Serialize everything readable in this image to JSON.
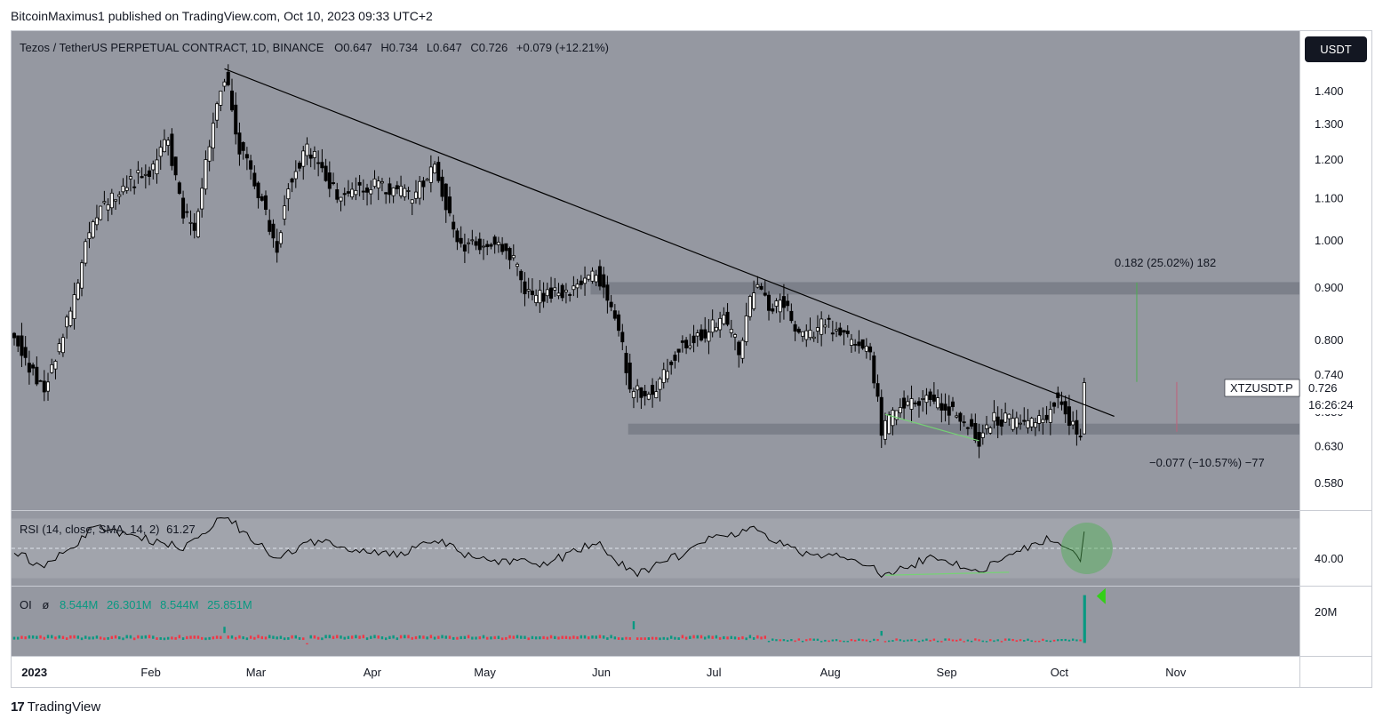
{
  "header": {
    "published": "BitcoinMaximus1 published on TradingView.com, Oct 10, 2023 09:33 UTC+2"
  },
  "legend": {
    "symbol": "Tezos / TetherUS PERPETUAL CONTRACT, 1D, BINANCE",
    "o_label": "O",
    "o_value": "0.647",
    "h_label": "H",
    "h_value": "0.734",
    "l_label": "L",
    "l_value": "0.647",
    "c_label": "C",
    "c_value": "0.726",
    "change": "+0.079 (+12.21%)"
  },
  "currency_badge": "USDT",
  "price_tag": {
    "symbol": "XTZUSDT.P",
    "price": "0.726",
    "countdown": "16:26:24"
  },
  "measure": {
    "up_label": "0.182 (25.02%) 182",
    "down_label": "−0.077 (−10.57%) −77"
  },
  "rsi_panel": {
    "label": "RSI (14, close, SMA, 14, 2)",
    "value": "61.27",
    "axis_label": "40.00"
  },
  "oi_panel": {
    "label": "OI",
    "symbol": "ø",
    "values": [
      "8.544M",
      "26.301M",
      "8.544M",
      "25.851M"
    ],
    "axis_label": "20M"
  },
  "footer": {
    "brand": "TradingView"
  },
  "colors": {
    "chart_bg": "#9598a1",
    "panel_bg": "#9598a1",
    "trendline": "#000000",
    "zone": "#787b86",
    "divergence": "#4caf50",
    "oi_up": "#089981",
    "oi_down": "#f23645",
    "highlight": "#4caf50"
  },
  "chart_data": [
    {
      "type": "candlestick",
      "title": "Tezos / TetherUS PERPETUAL CONTRACT, 1D, BINANCE",
      "x_ticks": [
        "2023",
        "Feb",
        "Mar",
        "Apr",
        "May",
        "Jun",
        "Jul",
        "Aug",
        "Sep",
        "Oct",
        "Nov"
      ],
      "y_scale": "log",
      "y_ticks": [
        0.58,
        0.63,
        0.68,
        0.74,
        0.8,
        0.9,
        1.0,
        1.1,
        1.2,
        1.3,
        1.4
      ],
      "y_tick_labels": [
        "0.580",
        "0.630",
        "0.680",
        "0.740",
        "0.800",
        "0.900",
        "1.000",
        "1.100",
        "1.200",
        "1.300",
        "1.400"
      ],
      "ylim": [
        0.545,
        1.6
      ],
      "start_date": "2022-12-29",
      "key_points": [
        [
          "2022-12-29",
          0.81
        ],
        [
          "2023-01-03",
          0.74
        ],
        [
          "2023-01-06",
          0.71
        ],
        [
          "2023-01-14",
          0.87
        ],
        [
          "2023-01-17",
          0.99
        ],
        [
          "2023-01-21",
          1.07
        ],
        [
          "2023-01-28",
          1.13
        ],
        [
          "2023-02-04",
          1.18
        ],
        [
          "2023-02-08",
          1.25
        ],
        [
          "2023-02-12",
          1.06
        ],
        [
          "2023-02-15",
          1.02
        ],
        [
          "2023-02-19",
          1.24
        ],
        [
          "2023-02-23",
          1.45
        ],
        [
          "2023-02-27",
          1.23
        ],
        [
          "2023-03-03",
          1.14
        ],
        [
          "2023-03-09",
          0.98
        ],
        [
          "2023-03-12",
          1.14
        ],
        [
          "2023-03-17",
          1.23
        ],
        [
          "2023-03-25",
          1.11
        ],
        [
          "2023-04-05",
          1.13
        ],
        [
          "2023-04-14",
          1.1
        ],
        [
          "2023-04-20",
          1.18
        ],
        [
          "2023-04-22",
          1.12
        ],
        [
          "2023-04-26",
          0.99
        ],
        [
          "2023-05-05",
          0.99
        ],
        [
          "2023-05-10",
          0.97
        ],
        [
          "2023-05-15",
          0.88
        ],
        [
          "2023-05-25",
          0.89
        ],
        [
          "2023-06-02",
          0.93
        ],
        [
          "2023-06-08",
          0.82
        ],
        [
          "2023-06-11",
          0.71
        ],
        [
          "2023-06-18",
          0.71
        ],
        [
          "2023-06-24",
          0.79
        ],
        [
          "2023-07-01",
          0.81
        ],
        [
          "2023-07-06",
          0.84
        ],
        [
          "2023-07-10",
          0.78
        ],
        [
          "2023-07-14",
          0.9
        ],
        [
          "2023-07-19",
          0.86
        ],
        [
          "2023-07-22",
          0.87
        ],
        [
          "2023-07-26",
          0.8
        ],
        [
          "2023-08-02",
          0.83
        ],
        [
          "2023-08-08",
          0.8
        ],
        [
          "2023-08-14",
          0.78
        ],
        [
          "2023-08-17",
          0.65
        ],
        [
          "2023-08-22",
          0.69
        ],
        [
          "2023-08-30",
          0.7
        ],
        [
          "2023-09-05",
          0.68
        ],
        [
          "2023-09-12",
          0.64
        ],
        [
          "2023-09-16",
          0.67
        ],
        [
          "2023-09-24",
          0.66
        ],
        [
          "2023-09-30",
          0.67
        ],
        [
          "2023-10-02",
          0.7
        ],
        [
          "2023-10-06",
          0.67
        ],
        [
          "2023-10-09",
          0.647
        ],
        [
          "2023-10-10",
          0.726
        ]
      ],
      "last_candle": {
        "date": "2023-10-10",
        "open": 0.647,
        "high": 0.734,
        "low": 0.647,
        "close": 0.726
      },
      "horizontal_zones": [
        {
          "from": "2023-06-01",
          "low": 0.885,
          "high": 0.91
        },
        {
          "from": "2023-06-11",
          "low": 0.646,
          "high": 0.662
        }
      ],
      "trendline": [
        [
          "2023-02-23",
          1.47
        ],
        [
          "2023-10-18",
          0.673
        ]
      ],
      "divergence_line": [
        [
          "2023-08-18",
          0.676
        ],
        [
          "2023-09-12",
          0.637
        ]
      ],
      "measure": {
        "date": "2023-10-24",
        "base": 0.727,
        "up_to": 0.909,
        "down_to": 0.65
      }
    },
    {
      "type": "line",
      "name": "RSI (14, close, SMA, 14, 2)",
      "ylim": [
        25,
        75
      ],
      "band": [
        30,
        70
      ],
      "midline": 50,
      "key_points": [
        [
          "2022-12-29",
          48
        ],
        [
          "2023-01-06",
          37
        ],
        [
          "2023-01-20",
          65
        ],
        [
          "2023-02-12",
          50
        ],
        [
          "2023-02-23",
          72
        ],
        [
          "2023-03-09",
          42
        ],
        [
          "2023-03-18",
          55
        ],
        [
          "2023-04-10",
          45
        ],
        [
          "2023-04-20",
          57
        ],
        [
          "2023-05-01",
          42
        ],
        [
          "2023-05-20",
          40
        ],
        [
          "2023-06-02",
          54
        ],
        [
          "2023-06-12",
          32
        ],
        [
          "2023-06-24",
          45
        ],
        [
          "2023-07-01",
          56
        ],
        [
          "2023-07-14",
          62
        ],
        [
          "2023-07-26",
          47
        ],
        [
          "2023-08-08",
          45
        ],
        [
          "2023-08-18",
          32
        ],
        [
          "2023-08-30",
          44
        ],
        [
          "2023-09-12",
          35
        ],
        [
          "2023-09-20",
          45
        ],
        [
          "2023-10-01",
          57
        ],
        [
          "2023-10-09",
          43
        ],
        [
          "2023-10-10",
          61.27
        ]
      ],
      "divergence_line": [
        [
          "2023-08-18",
          32
        ],
        [
          "2023-09-20",
          34
        ]
      ],
      "highlight": [
        "2023-10-10",
        50
      ]
    },
    {
      "type": "bar",
      "name": "OI",
      "ylim": [
        0,
        30
      ],
      "unit": "M",
      "baseline": 8.5,
      "spikes": [
        [
          "2023-02-23",
          12.6
        ],
        [
          "2023-03-17",
          5.5
        ],
        [
          "2023-06-12",
          15.0
        ],
        [
          "2023-08-17",
          10.8
        ],
        [
          "2023-10-10",
          26.3
        ]
      ]
    }
  ]
}
